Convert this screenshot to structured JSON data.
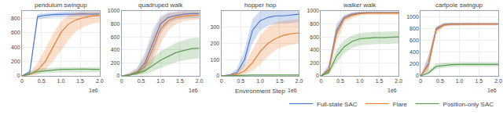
{
  "chart_data": [
    {
      "type": "line",
      "title": "pendulum swingup",
      "x": [
        0,
        0.2,
        0.4,
        0.6,
        0.8,
        1.0,
        1.2,
        1.4,
        1.6,
        1.8,
        2.0
      ],
      "xlim": [
        0,
        2.0
      ],
      "xticks": [
        0,
        0.5,
        {
          "value": 1.0,
          "label": "1.0"
        },
        1.5,
        {
          "value": 2.0,
          "label": "2.0"
        }
      ],
      "ylim": [
        0,
        900
      ],
      "yticks": [
        0,
        200,
        400,
        600,
        800
      ],
      "grid": true,
      "legend": "bottom right",
      "annotations": [
        "1e6"
      ],
      "series": [
        {
          "name": "Full-state SAC",
          "color": "#4878cf",
          "values": [
            0,
            50,
            820,
            840,
            850,
            855,
            855,
            855,
            860,
            855,
            860
          ],
          "low": [
            0,
            10,
            780,
            800,
            810,
            815,
            820,
            820,
            825,
            820,
            820
          ],
          "high": [
            0,
            90,
            860,
            870,
            880,
            890,
            895,
            895,
            900,
            895,
            900
          ]
        },
        {
          "name": "Flare",
          "color": "#e88134",
          "values": [
            0,
            20,
            80,
            200,
            400,
            600,
            720,
            780,
            810,
            830,
            840
          ],
          "low": [
            0,
            5,
            20,
            80,
            200,
            350,
            500,
            620,
            680,
            720,
            740
          ],
          "high": [
            0,
            50,
            180,
            380,
            580,
            750,
            840,
            880,
            890,
            890,
            890
          ]
        },
        {
          "name": "Position-only SAC",
          "color": "#5a9e52",
          "values": [
            0,
            30,
            60,
            70,
            80,
            90,
            90,
            95,
            95,
            90,
            90
          ],
          "low": [
            0,
            10,
            30,
            40,
            45,
            50,
            50,
            55,
            55,
            50,
            50
          ],
          "high": [
            0,
            60,
            100,
            110,
            115,
            120,
            120,
            125,
            120,
            120,
            120
          ]
        }
      ]
    },
    {
      "type": "line",
      "title": "quadruped walk",
      "x": [
        0,
        0.2,
        0.4,
        0.6,
        0.8,
        1.0,
        1.2,
        1.4,
        1.6,
        1.8,
        2.0
      ],
      "xlim": [
        0,
        2.0
      ],
      "xticks": [
        0,
        0.5,
        {
          "value": 1.0,
          "label": "1.0"
        },
        1.5,
        {
          "value": 2.0,
          "label": "2.0"
        }
      ],
      "ylim": [
        0,
        1000
      ],
      "yticks": [
        0,
        200,
        400,
        600,
        800,
        1000
      ],
      "grid": true,
      "annotations": [
        "1e6"
      ],
      "series": [
        {
          "name": "Full-state SAC",
          "color": "#4878cf",
          "values": [
            0,
            20,
            60,
            200,
            500,
            800,
            900,
            930,
            950,
            960,
            960
          ],
          "low": [
            0,
            5,
            20,
            100,
            300,
            650,
            800,
            860,
            880,
            890,
            890
          ],
          "high": [
            0,
            50,
            130,
            350,
            700,
            920,
            980,
            990,
            1000,
            1000,
            1000
          ]
        },
        {
          "name": "Flare",
          "color": "#e88134",
          "values": [
            0,
            15,
            50,
            150,
            420,
            720,
            850,
            900,
            920,
            930,
            940
          ],
          "low": [
            0,
            5,
            15,
            50,
            200,
            500,
            700,
            800,
            840,
            860,
            870
          ],
          "high": [
            0,
            40,
            110,
            300,
            620,
            880,
            960,
            980,
            990,
            990,
            990
          ]
        },
        {
          "name": "Position-only SAC",
          "color": "#5a9e52",
          "values": [
            0,
            10,
            40,
            80,
            160,
            240,
            300,
            360,
            390,
            420,
            430
          ],
          "low": [
            0,
            3,
            15,
            30,
            70,
            120,
            170,
            210,
            240,
            260,
            270
          ],
          "high": [
            0,
            25,
            80,
            160,
            280,
            380,
            440,
            510,
            550,
            580,
            590
          ]
        }
      ]
    },
    {
      "type": "line",
      "title": "hopper hop",
      "x": [
        0,
        0.2,
        0.4,
        0.6,
        0.8,
        1.0,
        1.2,
        1.4,
        1.6,
        1.8,
        2.0
      ],
      "xlim": [
        0,
        2.0
      ],
      "xticks": [
        0,
        0.5,
        {
          "value": 1.0,
          "label": "1.0"
        },
        1.5,
        {
          "value": 2.0,
          "label": "2.0"
        }
      ],
      "ylim": [
        0,
        400
      ],
      "yticks": [
        0,
        100,
        200,
        300
      ],
      "grid": true,
      "xlabel": "Environment Step",
      "annotations": [
        "1e6"
      ],
      "series": [
        {
          "name": "Full-state SAC",
          "color": "#4878cf",
          "values": [
            0,
            5,
            20,
            100,
            280,
            340,
            360,
            370,
            370,
            375,
            380
          ],
          "low": [
            0,
            2,
            8,
            60,
            200,
            280,
            310,
            320,
            320,
            325,
            330
          ],
          "high": [
            0,
            10,
            45,
            160,
            350,
            400,
            400,
            400,
            400,
            400,
            400
          ]
        },
        {
          "name": "Flare",
          "color": "#e88134",
          "values": [
            0,
            3,
            10,
            30,
            80,
            150,
            200,
            230,
            250,
            260,
            265
          ],
          "low": [
            0,
            1,
            3,
            10,
            30,
            70,
            120,
            160,
            180,
            190,
            200
          ],
          "high": [
            0,
            8,
            25,
            70,
            160,
            250,
            300,
            330,
            340,
            345,
            350
          ]
        },
        {
          "name": "Position-only SAC",
          "color": "#5a9e52",
          "values": [
            0,
            2,
            3,
            4,
            5,
            5,
            5,
            5,
            5,
            5,
            5
          ],
          "low": [
            0,
            1,
            1,
            1,
            2,
            2,
            2,
            2,
            2,
            2,
            2
          ],
          "high": [
            0,
            5,
            7,
            8,
            9,
            9,
            9,
            9,
            9,
            9,
            9
          ]
        }
      ]
    },
    {
      "type": "line",
      "title": "walker walk",
      "x": [
        0,
        0.2,
        0.4,
        0.6,
        0.8,
        1.0,
        1.2,
        1.4,
        1.6,
        1.8,
        2.0
      ],
      "xlim": [
        0,
        2.0
      ],
      "xticks": [
        0,
        0.5,
        {
          "value": 1.0,
          "label": "1.0"
        },
        1.5,
        {
          "value": 2.0,
          "label": "2.0"
        }
      ],
      "ylim": [
        0,
        1000
      ],
      "yticks": [
        0,
        200,
        400,
        600,
        800,
        1000
      ],
      "grid": true,
      "annotations": [
        "1e6"
      ],
      "series": [
        {
          "name": "Full-state SAC",
          "color": "#4878cf",
          "values": [
            0,
            100,
            700,
            900,
            950,
            970,
            975,
            975,
            975,
            975,
            975
          ],
          "low": [
            0,
            50,
            600,
            860,
            920,
            950,
            960,
            960,
            960,
            960,
            960
          ],
          "high": [
            0,
            180,
            800,
            940,
            980,
            990,
            990,
            990,
            990,
            990,
            990
          ]
        },
        {
          "name": "Flare",
          "color": "#e88134",
          "values": [
            0,
            80,
            650,
            880,
            930,
            960,
            965,
            965,
            965,
            965,
            965
          ],
          "low": [
            0,
            30,
            520,
            820,
            890,
            930,
            940,
            940,
            940,
            940,
            940
          ],
          "high": [
            0,
            150,
            760,
            930,
            970,
            985,
            990,
            990,
            990,
            990,
            990
          ]
        },
        {
          "name": "Position-only SAC",
          "color": "#5a9e52",
          "values": [
            0,
            50,
            300,
            450,
            530,
            570,
            580,
            590,
            590,
            595,
            600
          ],
          "low": [
            0,
            20,
            200,
            350,
            430,
            470,
            480,
            490,
            490,
            495,
            500
          ],
          "high": [
            0,
            90,
            400,
            550,
            620,
            660,
            670,
            680,
            680,
            685,
            690
          ]
        }
      ]
    },
    {
      "type": "line",
      "title": "cartpole swingup",
      "x": [
        0,
        0.2,
        0.4,
        0.6,
        0.8,
        1.0,
        1.2,
        1.4,
        1.6,
        1.8,
        2.0
      ],
      "xlim": [
        0,
        2.0
      ],
      "xticks": [
        0,
        0.5,
        {
          "value": 1.0,
          "label": "1.0"
        },
        1.5,
        {
          "value": 2.0,
          "label": "2.0"
        }
      ],
      "ylim": [
        0,
        1100
      ],
      "yticks": [
        0,
        200,
        400,
        600,
        800,
        1000
      ],
      "grid": true,
      "annotations": [
        "1e6"
      ],
      "series": [
        {
          "name": "Full-state SAC",
          "color": "#4878cf",
          "values": [
            0,
            200,
            800,
            870,
            880,
            880,
            880,
            880,
            880,
            880,
            880
          ],
          "low": [
            0,
            100,
            760,
            840,
            855,
            860,
            860,
            860,
            860,
            860,
            860
          ],
          "high": [
            0,
            350,
            840,
            900,
            905,
            905,
            905,
            905,
            905,
            905,
            905
          ]
        },
        {
          "name": "Flare",
          "color": "#e88134",
          "values": [
            0,
            180,
            780,
            860,
            875,
            878,
            878,
            878,
            878,
            878,
            878
          ],
          "low": [
            0,
            80,
            720,
            830,
            848,
            852,
            852,
            852,
            852,
            852,
            852
          ],
          "high": [
            0,
            320,
            830,
            890,
            900,
            902,
            902,
            902,
            902,
            902,
            902
          ]
        },
        {
          "name": "Position-only SAC",
          "color": "#5a9e52",
          "values": [
            0,
            50,
            160,
            180,
            190,
            195,
            195,
            195,
            195,
            195,
            195
          ],
          "low": [
            0,
            20,
            120,
            140,
            150,
            155,
            155,
            155,
            155,
            155,
            155
          ],
          "high": [
            0,
            90,
            210,
            225,
            230,
            235,
            235,
            235,
            235,
            235,
            235
          ]
        }
      ]
    }
  ]
}
